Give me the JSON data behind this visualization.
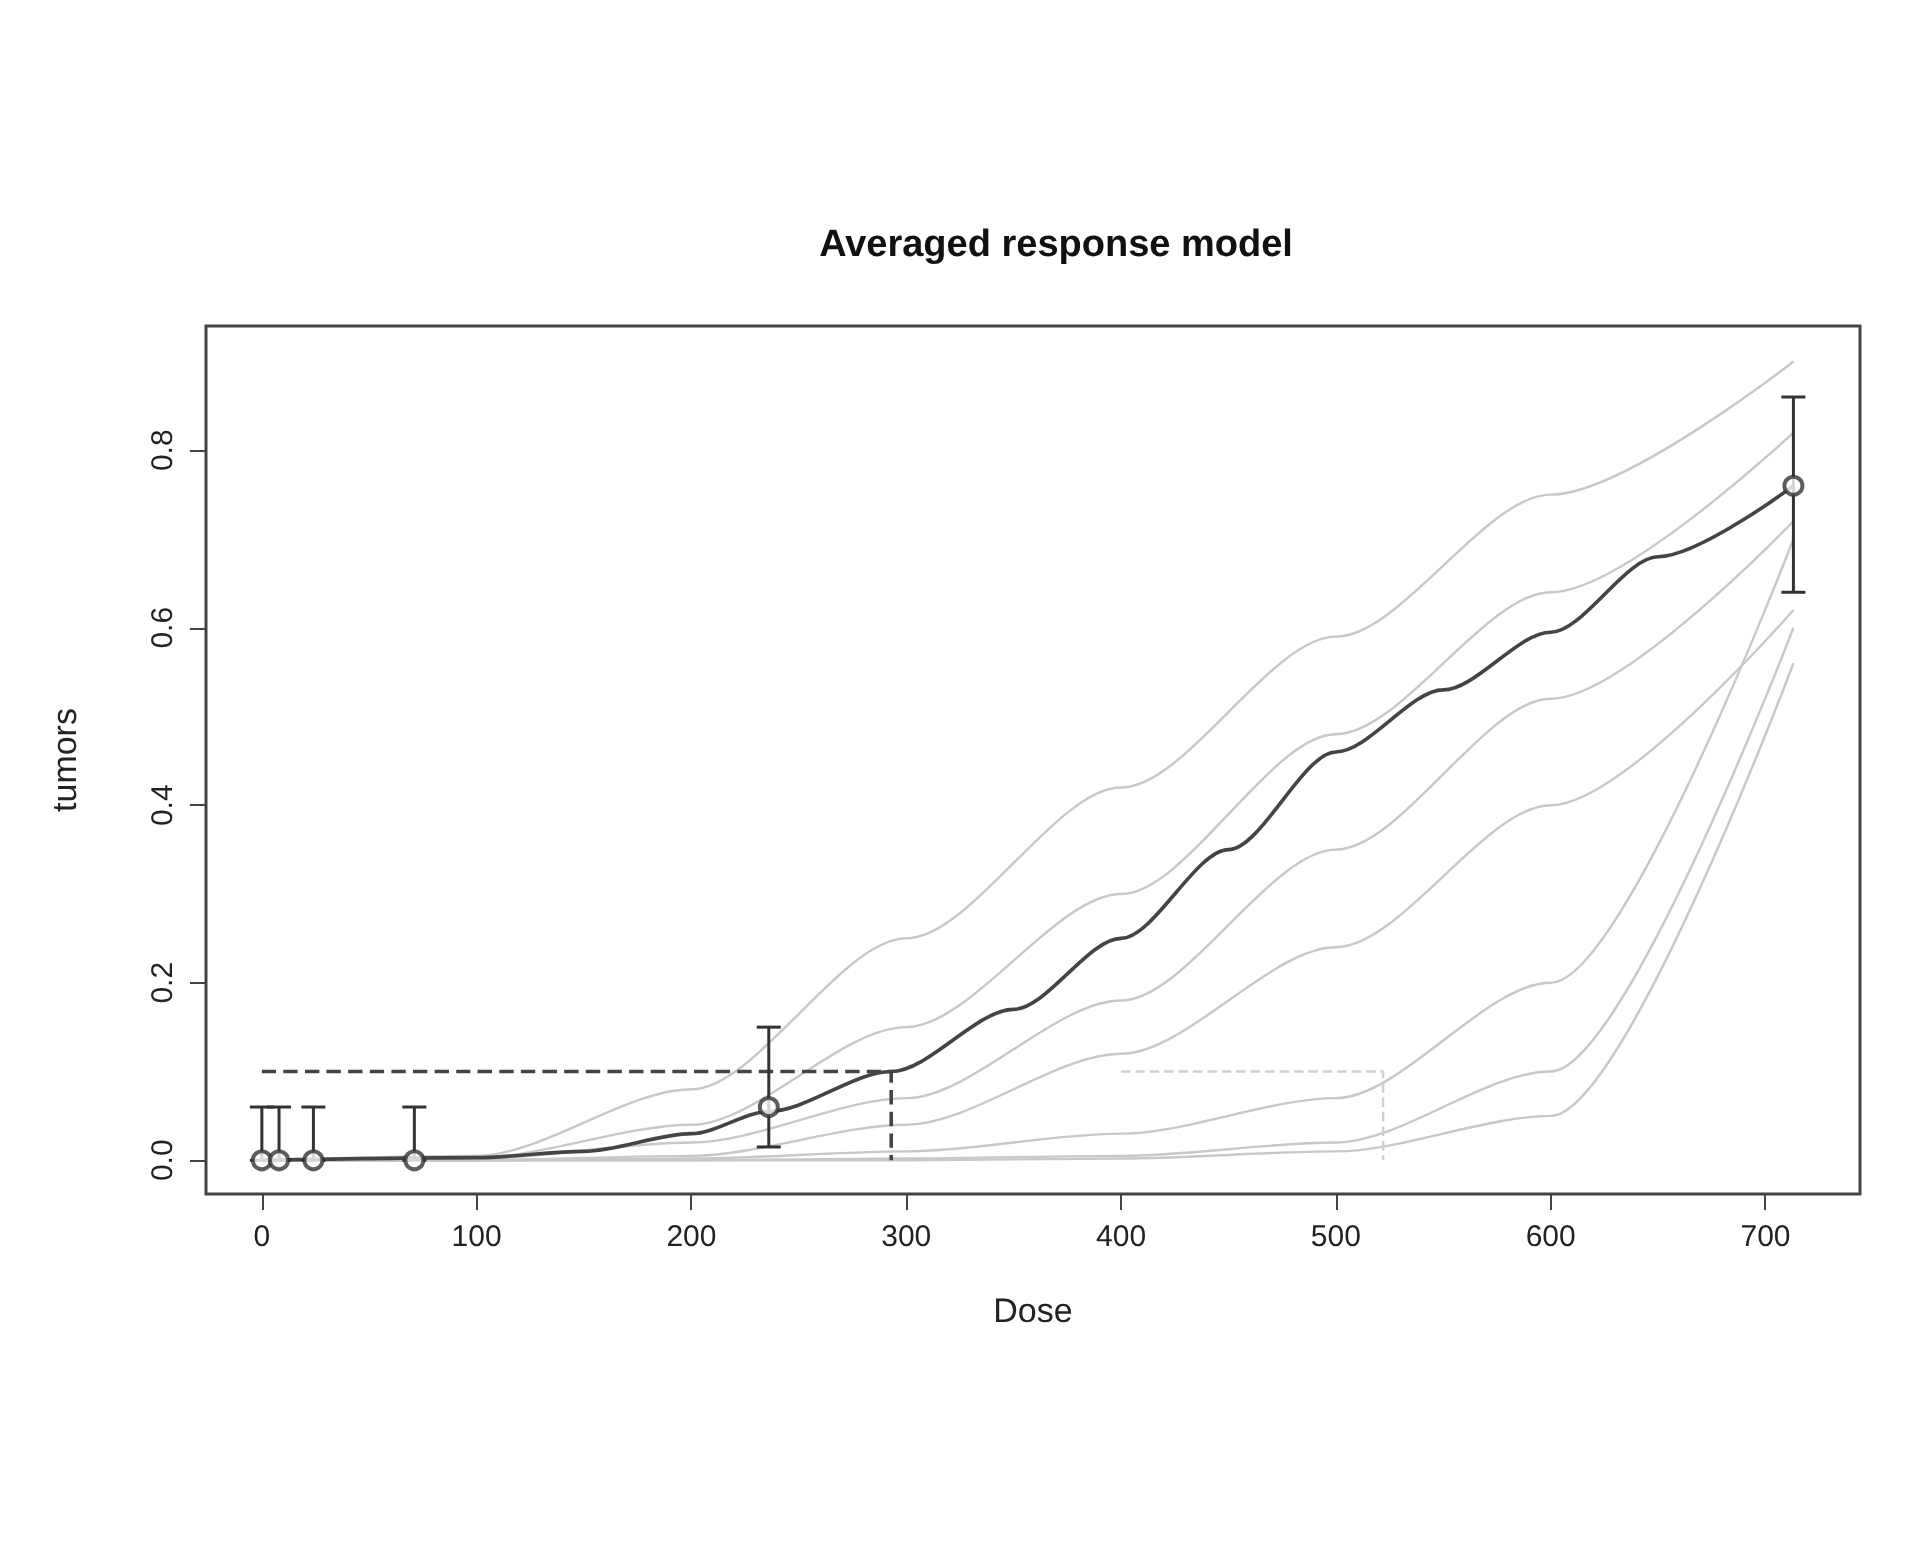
{
  "chart_data": {
    "type": "line",
    "title": "Averaged response model",
    "xlabel": "Dose",
    "ylabel": "tumors",
    "xlim": [
      -26,
      744
    ],
    "ylim": [
      -0.038,
      0.94
    ],
    "xticks": [
      0,
      100,
      200,
      300,
      400,
      500,
      600,
      700
    ],
    "yticks": [
      {
        "value": 0,
        "label": "0.0"
      },
      0.2,
      0.4,
      0.6,
      0.8
    ],
    "grid": false,
    "series": [
      {
        "color": "#c8c8c8",
        "x": [
          0,
          100,
          200,
          300,
          400,
          500,
          600,
          713
        ],
        "values": [
          0,
          0.005,
          0.08,
          0.25,
          0.42,
          0.59,
          0.75,
          0.9
        ]
      },
      {
        "type": "line",
        "color": "#c8c8c8",
        "x": [
          0,
          100,
          200,
          300,
          400,
          500,
          600,
          713
        ],
        "values": [
          0,
          0.003,
          0.04,
          0.15,
          0.3,
          0.48,
          0.64,
          0.82
        ]
      },
      {
        "type": "line",
        "color": "#c8c8c8",
        "x": [
          0,
          100,
          200,
          300,
          400,
          500,
          600,
          713
        ],
        "values": [
          0,
          0.002,
          0.02,
          0.07,
          0.18,
          0.35,
          0.52,
          0.72
        ]
      },
      {
        "type": "line",
        "color": "#c8c8c8",
        "x": [
          0,
          100,
          200,
          300,
          400,
          500,
          600,
          713
        ],
        "values": [
          0,
          0,
          0.005,
          0.04,
          0.12,
          0.24,
          0.4,
          0.62
        ]
      },
      {
        "type": "line",
        "color": "#c8c8c8",
        "x": [
          0,
          100,
          200,
          300,
          400,
          500,
          600,
          713
        ],
        "values": [
          0,
          0,
          0.002,
          0.01,
          0.03,
          0.07,
          0.2,
          0.7
        ]
      },
      {
        "type": "line",
        "color": "#c8c8c8",
        "x": [
          0,
          100,
          200,
          300,
          400,
          500,
          600,
          713
        ],
        "values": [
          0,
          0,
          0,
          0.002,
          0.005,
          0.02,
          0.1,
          0.6
        ]
      },
      {
        "type": "line",
        "color": "#c8c8c8",
        "x": [
          0,
          100,
          200,
          300,
          400,
          500,
          600,
          713
        ],
        "values": [
          0,
          0,
          0,
          0,
          0.002,
          0.01,
          0.05,
          0.56
        ]
      },
      {
        "type": "line",
        "color": "#444444",
        "x": [
          0,
          100,
          150,
          200,
          236,
          293,
          350,
          400,
          450,
          500,
          550,
          600,
          650,
          713
        ],
        "values": [
          0,
          0.003,
          0.01,
          0.03,
          0.055,
          0.1,
          0.17,
          0.25,
          0.35,
          0.46,
          0.53,
          0.595,
          0.68,
          0.76
        ]
      },
      {
        "type": "line",
        "color": "#444444",
        "line_style": "dashed",
        "x": [
          0,
          293,
          293
        ],
        "values": [
          0.1,
          0.1,
          0
        ]
      },
      {
        "type": "line",
        "color": "#d0d0d0",
        "line_style": "dashed",
        "x": [
          400,
          522,
          522
        ],
        "values": [
          0.1,
          0.1,
          0
        ]
      },
      {
        "type": "scatter",
        "color": "#333333",
        "marker": "circle",
        "x": [
          0,
          8,
          24,
          71,
          236,
          713
        ],
        "values": [
          0,
          0,
          0,
          0,
          0.06,
          0.76
        ],
        "errors": [
          [
            0,
            0.06
          ],
          [
            0,
            0.06
          ],
          [
            0,
            0.06
          ],
          [
            0,
            0.06
          ],
          [
            0.015,
            0.15
          ],
          [
            0.64,
            0.86
          ]
        ]
      }
    ]
  }
}
